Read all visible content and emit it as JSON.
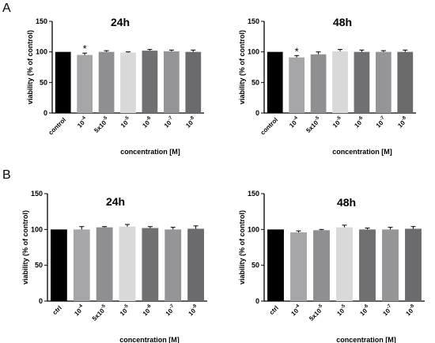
{
  "panel_labels": [
    "A",
    "B"
  ],
  "colors": [
    "#000000",
    "#a6a6a8",
    "#8f8f91",
    "#d9d9d9",
    "#707072",
    "#959597",
    "#6b6b6d"
  ],
  "chart_data": [
    {
      "type": "bar",
      "panel": "A",
      "title": "24h",
      "ylabel": "viability (% of control)",
      "xlabel": "concentration [M]",
      "ylim": [
        0,
        150
      ],
      "yticks": [
        0,
        50,
        100,
        150
      ],
      "grid": false,
      "categories": [
        "control",
        "10-4",
        "5x10-5",
        "10-5",
        "10-6",
        "10-7",
        "10-8"
      ],
      "category_parts": [
        [
          "control",
          ""
        ],
        [
          "10",
          "-4"
        ],
        [
          "5x10",
          "-5"
        ],
        [
          "10",
          "-5"
        ],
        [
          "10",
          "-6"
        ],
        [
          "10",
          "-7"
        ],
        [
          "10",
          "-8"
        ]
      ],
      "values": [
        100,
        95,
        100,
        99,
        102,
        101,
        100
      ],
      "errors": [
        0,
        3,
        2,
        1,
        2,
        2,
        3
      ],
      "annotations": [
        {
          "index": 1,
          "text": "*"
        }
      ]
    },
    {
      "type": "bar",
      "panel": "A",
      "title": "48h",
      "ylabel": "viability (% of control)",
      "xlabel": "concentration [M]",
      "ylim": [
        0,
        150
      ],
      "yticks": [
        0,
        50,
        100,
        150
      ],
      "grid": false,
      "categories": [
        "control",
        "10-4",
        "5x10-5",
        "10-5",
        "10-6",
        "10-7",
        "10-8"
      ],
      "category_parts": [
        [
          "control",
          ""
        ],
        [
          "10",
          "-4"
        ],
        [
          "5x10",
          "-5"
        ],
        [
          "10",
          "-5"
        ],
        [
          "10",
          "-6"
        ],
        [
          "10",
          "-7"
        ],
        [
          "10",
          "-8"
        ]
      ],
      "values": [
        100,
        91,
        96,
        101,
        100,
        100,
        100
      ],
      "errors": [
        0,
        3,
        4,
        3,
        3,
        2,
        3
      ],
      "annotations": [
        {
          "index": 1,
          "text": "*"
        }
      ]
    },
    {
      "type": "bar",
      "panel": "B",
      "title": "24h",
      "ylabel": "viability (% of control)",
      "xlabel": "concentration [M]",
      "ylim": [
        0,
        150
      ],
      "yticks": [
        0,
        50,
        100,
        150
      ],
      "grid": false,
      "categories": [
        "ctrl",
        "10-4",
        "5x10-5",
        "10-5",
        "10-6",
        "10-7",
        "10-8"
      ],
      "category_parts": [
        [
          "ctrl",
          ""
        ],
        [
          "10",
          "-4"
        ],
        [
          "5x10",
          "-5"
        ],
        [
          "10",
          "-5"
        ],
        [
          "10",
          "-6"
        ],
        [
          "10",
          "-7"
        ],
        [
          "10",
          "-8"
        ]
      ],
      "values": [
        100,
        100,
        103,
        104,
        102,
        100,
        101
      ],
      "errors": [
        0,
        4,
        1,
        3,
        2,
        3,
        4
      ],
      "annotations": []
    },
    {
      "type": "bar",
      "panel": "B",
      "title": "48h",
      "ylabel": "viability (% of control)",
      "xlabel": "concentration [M]",
      "ylim": [
        0,
        150
      ],
      "yticks": [
        0,
        50,
        100,
        150
      ],
      "grid": false,
      "categories": [
        "ctrl",
        "10-4",
        "5x10-5",
        "10-5",
        "10-6",
        "10-7",
        "10-8"
      ],
      "category_parts": [
        [
          "ctrl",
          ""
        ],
        [
          "10",
          "-4"
        ],
        [
          "5x10",
          "-5"
        ],
        [
          "10",
          "-5"
        ],
        [
          "10",
          "-6"
        ],
        [
          "10",
          "-7"
        ],
        [
          "10",
          "-8"
        ]
      ],
      "values": [
        100,
        96,
        99,
        103,
        100,
        100,
        101
      ],
      "errors": [
        0,
        2,
        1,
        3,
        2,
        3,
        3
      ],
      "annotations": []
    }
  ]
}
